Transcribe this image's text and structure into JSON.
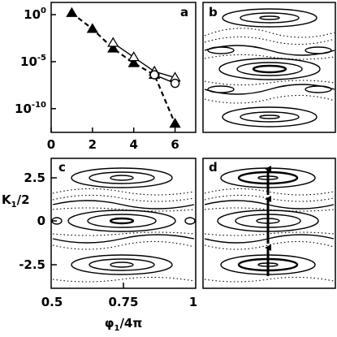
{
  "chart_data": [
    {
      "type": "line",
      "panel": "a",
      "yscale": "log",
      "xlim": [
        0,
        7
      ],
      "x_ticks": [
        "0",
        "2",
        "4",
        "6"
      ],
      "y_ticks": [
        "10^0",
        "10^-5",
        "10^-10"
      ],
      "series": [
        {
          "marker": "filled-triangle",
          "style": "dashed",
          "x": [
            1,
            2,
            3,
            4,
            5,
            6
          ],
          "y": [
            1.5,
            0.03,
            0.00025,
            7e-06,
            4e-07,
            2.5e-12
          ]
        },
        {
          "marker": "open-triangle",
          "style": "solid",
          "x": [
            3,
            4,
            5,
            6
          ],
          "y": [
            0.001,
            3e-05,
            9e-07,
            2e-07
          ]
        },
        {
          "marker": "open-circle",
          "style": "solid",
          "x": [
            5,
            6
          ],
          "y": [
            4e-07,
            5e-08
          ]
        }
      ]
    },
    {
      "type": "scatter",
      "panel": "b"
    },
    {
      "type": "scatter",
      "panel": "c",
      "xlabel_base": "φ",
      "xlabel_sub": "1",
      "xlabel_tail": "/4π",
      "ylabel_base": "K",
      "ylabel_sub": "1",
      "ylabel_tail": "/2",
      "xlim": [
        0.5,
        1
      ],
      "x_ticks": [
        "0.5",
        "0.75",
        "1"
      ],
      "y_ticks": [
        "2.5",
        "0",
        "-2.5"
      ]
    },
    {
      "type": "scatter",
      "panel": "d",
      "annotation": "upward arrows"
    }
  ]
}
